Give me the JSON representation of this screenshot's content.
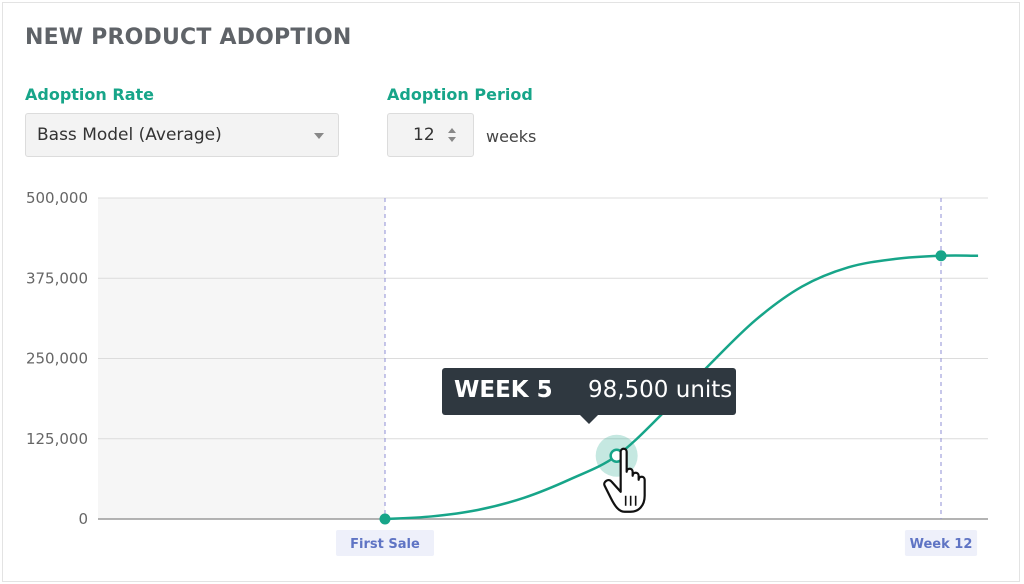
{
  "header": {
    "title": "NEW PRODUCT ADOPTION"
  },
  "controls": {
    "adoption_rate_label": "Adoption Rate",
    "adoption_rate_value": "Bass Model (Average)",
    "adoption_period_label": "Adoption Period",
    "adoption_period_value": "12",
    "adoption_period_unit": "weeks"
  },
  "tooltip": {
    "week": "WEEK 5",
    "value": "98,500 units"
  },
  "colors": {
    "accent": "#17a589",
    "marker_label": "#5f74c4",
    "tooltip_bg": "#2f3840"
  },
  "icons": {
    "cursor": "hand-pointer-icon"
  },
  "chart_data": {
    "type": "line",
    "title": "",
    "xlabel": "",
    "ylabel": "",
    "ylim": [
      0,
      500000
    ],
    "yticks": [
      0,
      125000,
      250000,
      375000,
      500000
    ],
    "ytick_labels": [
      "0",
      "125,000",
      "250,000",
      "375,000",
      "500,000"
    ],
    "xlim": [
      0,
      12
    ],
    "x_markers": [
      {
        "x": 0,
        "label": "First Sale"
      },
      {
        "x": 12,
        "label": "Week 12"
      }
    ],
    "grid": true,
    "series": [
      {
        "x": [
          0,
          1,
          2,
          3,
          4,
          5,
          6,
          7,
          8,
          9,
          10,
          11,
          12,
          12.8
        ],
        "values": [
          0,
          4000,
          14000,
          33000,
          62000,
          98500,
          165000,
          240000,
          310000,
          362000,
          392000,
          405000,
          410000,
          410000
        ]
      }
    ],
    "highlight": {
      "x": 5,
      "value": 98500
    },
    "endpoints": [
      {
        "x": 0,
        "value": 0
      },
      {
        "x": 12,
        "value": 410000
      }
    ]
  }
}
